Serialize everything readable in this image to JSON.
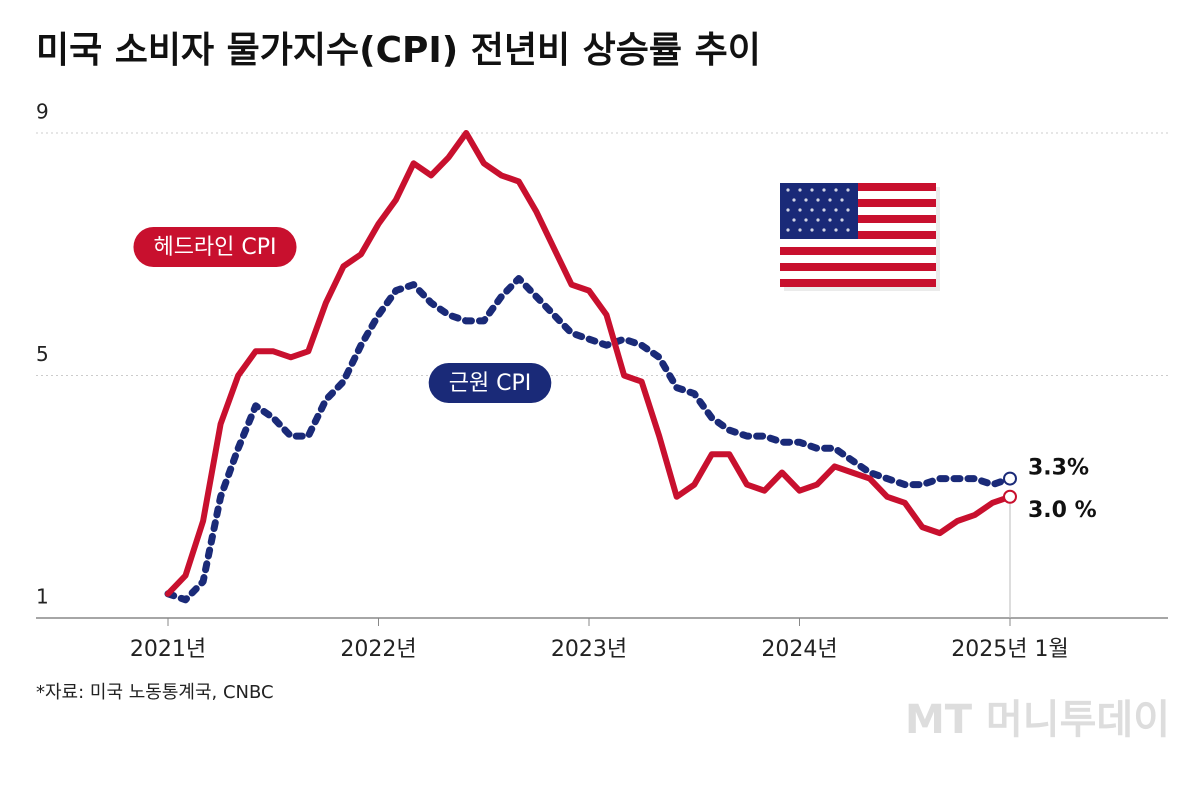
{
  "chart_data": {
    "type": "line",
    "title": "미국 소비자 물가지수(CPI) 전년비 상승률 추이",
    "source": "*자료: 미국 노동통계국, CNBC",
    "watermark": "MT 머니투데이",
    "categories": [
      "2021년",
      null,
      null,
      null,
      null,
      null,
      null,
      null,
      null,
      null,
      null,
      null,
      "2022년",
      null,
      null,
      null,
      null,
      null,
      null,
      null,
      null,
      null,
      null,
      null,
      "2023년",
      null,
      null,
      null,
      null,
      null,
      null,
      null,
      null,
      null,
      null,
      null,
      "2024년",
      null,
      null,
      null,
      null,
      null,
      null,
      null,
      null,
      null,
      null,
      null,
      "2025년 1월"
    ],
    "series": [
      {
        "name": "헤드라인 CPI",
        "color": "#c8102e",
        "dashed": false,
        "values": [
          1.4,
          1.7,
          2.6,
          4.2,
          5.0,
          5.4,
          5.4,
          5.3,
          5.4,
          6.2,
          6.8,
          7.0,
          7.5,
          7.9,
          8.5,
          8.3,
          8.6,
          9.0,
          8.5,
          8.3,
          8.2,
          7.7,
          7.1,
          6.5,
          6.4,
          6.0,
          5.0,
          4.9,
          4.0,
          3.0,
          3.2,
          3.7,
          3.7,
          3.2,
          3.1,
          3.4,
          3.1,
          3.2,
          3.5,
          3.4,
          3.3,
          3.0,
          2.9,
          2.5,
          2.4,
          2.6,
          2.7,
          2.9,
          3.0
        ],
        "value_labels": [
          null,
          null,
          null,
          null,
          null,
          null,
          null,
          null,
          null,
          null,
          null,
          null,
          null,
          null,
          null,
          null,
          null,
          null,
          null,
          null,
          null,
          null,
          null,
          null,
          null,
          null,
          null,
          null,
          null,
          null,
          null,
          null,
          null,
          null,
          null,
          null,
          null,
          null,
          null,
          null,
          null,
          null,
          null,
          null,
          null,
          null,
          null,
          null,
          "3.0 %"
        ]
      },
      {
        "name": "근원 CPI",
        "color": "#1a2a78",
        "dashed": true,
        "values": [
          1.4,
          1.3,
          1.6,
          3.0,
          3.8,
          4.5,
          4.3,
          4.0,
          4.0,
          4.6,
          4.9,
          5.5,
          6.0,
          6.4,
          6.5,
          6.2,
          6.0,
          5.9,
          5.9,
          6.3,
          6.6,
          6.3,
          6.0,
          5.7,
          5.6,
          5.5,
          5.6,
          5.5,
          5.3,
          4.8,
          4.7,
          4.3,
          4.1,
          4.0,
          4.0,
          3.9,
          3.9,
          3.8,
          3.8,
          3.6,
          3.4,
          3.3,
          3.2,
          3.2,
          3.3,
          3.3,
          3.3,
          3.2,
          3.3
        ],
        "value_labels": [
          null,
          null,
          null,
          null,
          null,
          null,
          null,
          null,
          null,
          null,
          null,
          null,
          null,
          null,
          null,
          null,
          null,
          null,
          null,
          null,
          null,
          null,
          null,
          null,
          null,
          null,
          null,
          null,
          null,
          null,
          null,
          null,
          null,
          null,
          null,
          null,
          null,
          null,
          null,
          null,
          null,
          null,
          null,
          null,
          null,
          null,
          null,
          null,
          "3.3%"
        ]
      }
    ],
    "ylim": [
      1,
      9
    ],
    "yticks": [
      1,
      5,
      9
    ],
    "grid": true
  }
}
